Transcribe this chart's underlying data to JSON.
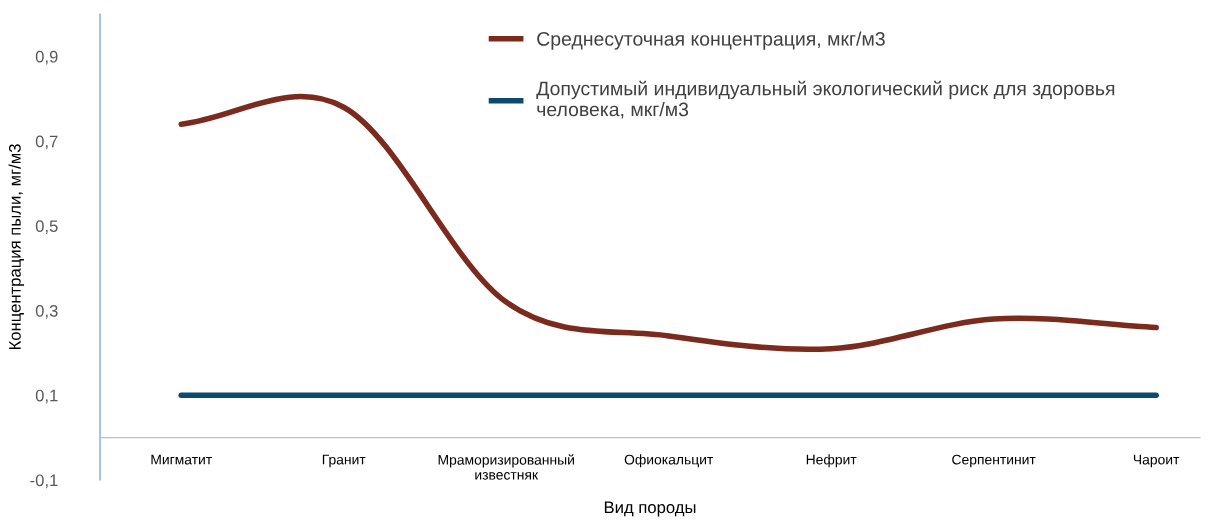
{
  "chart_data": {
    "type": "line",
    "xlabel": "Вид породы",
    "ylabel": "Концентрация пыли, мг/м3",
    "categories": [
      "Мигматит",
      "Гранит",
      "Мраморизированный\nизвестняк",
      "Офиокальцит",
      "Нефрит",
      "Серпентинит",
      "Чароит"
    ],
    "series": [
      {
        "name": "Среднесуточная концентрация, мкг/м3",
        "color": "#7b2a1e",
        "values": [
          0.74,
          0.78,
          0.32,
          0.24,
          0.21,
          0.28,
          0.26
        ]
      },
      {
        "name": "Допустимый индивидуальный экологический риск для здоровья\nчеловека, мкг/м3",
        "color": "#0d4a6b",
        "values": [
          0.1,
          0.1,
          0.1,
          0.1,
          0.1,
          0.1,
          0.1
        ]
      }
    ],
    "ylim": [
      -0.1,
      1.0
    ],
    "yticks": [
      {
        "value": -0.1,
        "label": "-0,1"
      },
      {
        "value": 0.1,
        "label": "0,1"
      },
      {
        "value": 0.3,
        "label": "0,3"
      },
      {
        "value": 0.5,
        "label": "0,5"
      },
      {
        "value": 0.7,
        "label": "0,7"
      },
      {
        "value": 0.9,
        "label": "0,9"
      }
    ],
    "grid": false,
    "legend": "top",
    "marker": "none",
    "line_style": "solid"
  }
}
